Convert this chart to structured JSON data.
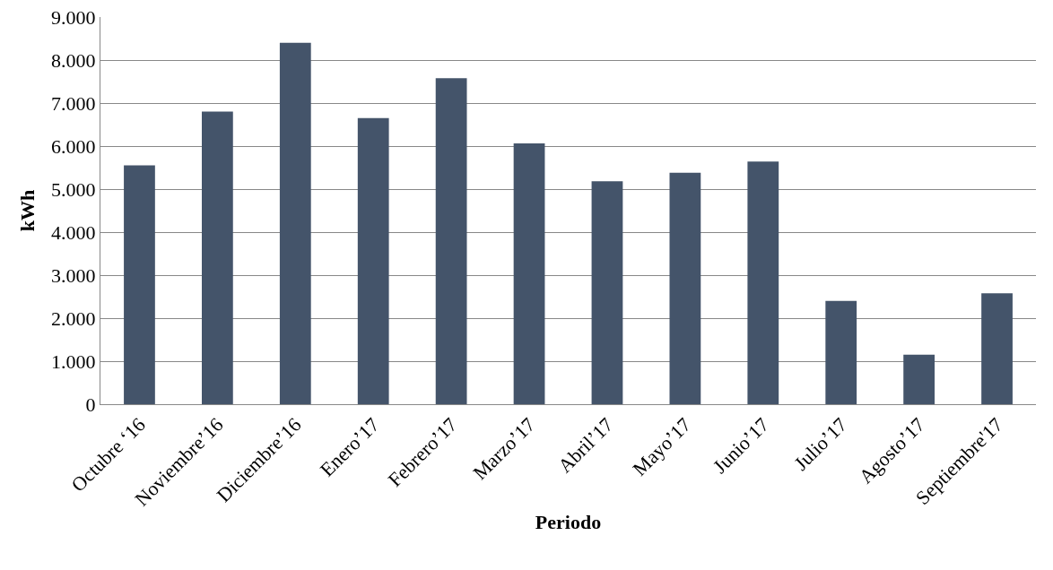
{
  "chart_data": {
    "type": "bar",
    "xlabel": "Periodo",
    "ylabel": "kWh",
    "categories": [
      "Octubre ‘16",
      "Noviembre’16",
      "Diciembre’16",
      "Enero’17",
      "Febrero’17",
      "Marzo’17",
      "Abril’17",
      "Mayo’17",
      "Junio’17",
      "Julio’17",
      "Agosto’17",
      "Septiembre'17"
    ],
    "values": [
      5550,
      6800,
      8400,
      6650,
      7580,
      6060,
      5180,
      5380,
      5640,
      2400,
      1150,
      2580
    ],
    "color": "#44546a",
    "ylim": [
      0,
      9000
    ],
    "yticks": [
      0,
      {
        "value": 1000,
        "label": "1.000"
      },
      {
        "value": 2000,
        "label": "2.000"
      },
      {
        "value": 3000,
        "label": "3.000"
      },
      {
        "value": 4000,
        "label": "4.000"
      },
      {
        "value": 5000,
        "label": "5.000"
      },
      {
        "value": 6000,
        "label": "6.000"
      },
      {
        "value": 7000,
        "label": "7.000"
      },
      {
        "value": 8000,
        "label": "8.000"
      },
      {
        "value": 9000,
        "label": "9.000"
      }
    ],
    "grid": "y",
    "legend": false
  }
}
